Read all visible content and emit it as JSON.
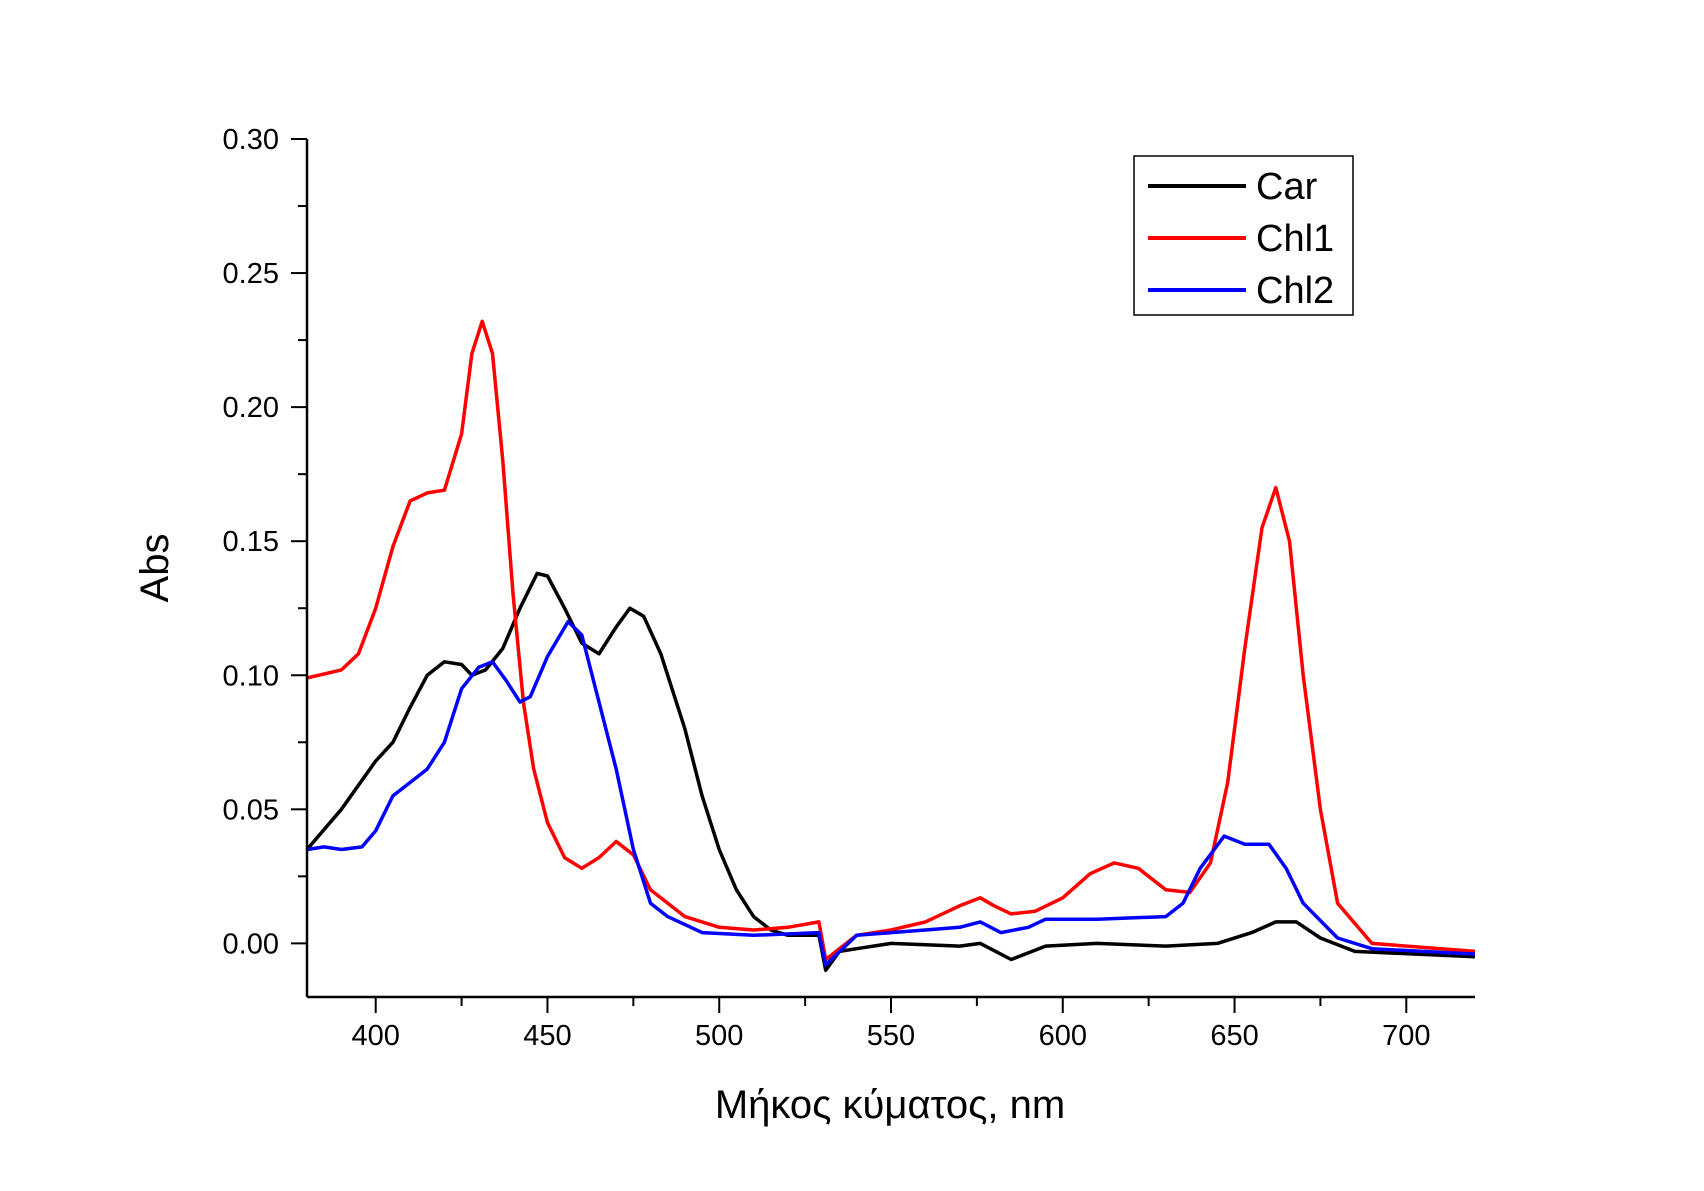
{
  "chart_data": {
    "type": "line",
    "title": "",
    "xlabel": "Μήκος κύματος, nm",
    "ylabel": "Abs",
    "xlim": [
      380,
      720
    ],
    "ylim": [
      -0.02,
      0.3
    ],
    "xticks": [
      400,
      450,
      500,
      550,
      600,
      650,
      700
    ],
    "yticks": [
      0.0,
      0.05,
      0.1,
      0.15,
      0.2,
      0.25,
      0.3
    ],
    "ytick_labels": [
      "0.00",
      "0.05",
      "0.10",
      "0.15",
      "0.20",
      "0.25",
      "0.30"
    ],
    "grid": false,
    "legend": "top-right",
    "series": [
      {
        "name": "Car",
        "color": "#000000",
        "x": [
          380,
          390,
          400,
          405,
          410,
          415,
          420,
          425,
          428,
          432,
          437,
          442,
          447,
          450,
          455,
          460,
          465,
          470,
          474,
          478,
          483,
          490,
          495,
          500,
          505,
          510,
          515,
          520,
          529,
          531,
          535,
          540,
          550,
          570,
          576,
          585,
          595,
          610,
          630,
          645,
          655,
          662,
          668,
          675,
          685,
          720
        ],
        "y": [
          0.035,
          0.05,
          0.068,
          0.075,
          0.088,
          0.1,
          0.105,
          0.104,
          0.1,
          0.102,
          0.11,
          0.125,
          0.138,
          0.137,
          0.125,
          0.112,
          0.108,
          0.118,
          0.125,
          0.122,
          0.108,
          0.08,
          0.055,
          0.035,
          0.02,
          0.01,
          0.005,
          0.003,
          0.003,
          -0.01,
          -0.003,
          -0.002,
          0,
          -0.001,
          0,
          -0.006,
          -0.001,
          0,
          -0.001,
          0,
          0.004,
          0.008,
          0.008,
          0.002,
          -0.003,
          -0.005
        ]
      },
      {
        "name": "Chl1",
        "color": "#ff0000",
        "x": [
          380,
          390,
          395,
          400,
          405,
          410,
          415,
          420,
          425,
          428,
          431,
          434,
          437,
          440,
          443,
          446,
          450,
          455,
          460,
          465,
          470,
          475,
          480,
          490,
          500,
          510,
          520,
          529,
          531,
          540,
          550,
          560,
          570,
          576,
          580,
          585,
          592,
          600,
          608,
          615,
          622,
          630,
          637,
          643,
          648,
          653,
          658,
          662,
          666,
          670,
          675,
          680,
          690,
          720
        ],
        "y": [
          0.099,
          0.102,
          0.108,
          0.125,
          0.148,
          0.165,
          0.168,
          0.169,
          0.19,
          0.22,
          0.232,
          0.22,
          0.18,
          0.13,
          0.09,
          0.065,
          0.045,
          0.032,
          0.028,
          0.032,
          0.038,
          0.033,
          0.02,
          0.01,
          0.006,
          0.005,
          0.006,
          0.008,
          -0.006,
          0.003,
          0.005,
          0.008,
          0.014,
          0.017,
          0.014,
          0.011,
          0.012,
          0.017,
          0.026,
          0.03,
          0.028,
          0.02,
          0.019,
          0.03,
          0.06,
          0.11,
          0.155,
          0.17,
          0.15,
          0.1,
          0.05,
          0.015,
          0,
          -0.003
        ]
      },
      {
        "name": "Chl2",
        "color": "#0000ff",
        "x": [
          380,
          385,
          390,
          396,
          400,
          405,
          410,
          415,
          420,
          425,
          430,
          434,
          438,
          442,
          445,
          450,
          456,
          460,
          465,
          470,
          475,
          480,
          485,
          495,
          510,
          529,
          531,
          540,
          560,
          570,
          576,
          582,
          590,
          595,
          610,
          630,
          635,
          640,
          647,
          653,
          660,
          665,
          670,
          680,
          690,
          720
        ],
        "y": [
          0.035,
          0.036,
          0.035,
          0.036,
          0.042,
          0.055,
          0.06,
          0.065,
          0.075,
          0.095,
          0.103,
          0.105,
          0.098,
          0.09,
          0.092,
          0.107,
          0.12,
          0.115,
          0.09,
          0.065,
          0.035,
          0.015,
          0.01,
          0.004,
          0.003,
          0.004,
          -0.008,
          0.003,
          0.005,
          0.006,
          0.008,
          0.004,
          0.006,
          0.009,
          0.009,
          0.01,
          0.015,
          0.028,
          0.04,
          0.037,
          0.037,
          0.028,
          0.015,
          0.002,
          -0.002,
          -0.004
        ]
      }
    ]
  }
}
